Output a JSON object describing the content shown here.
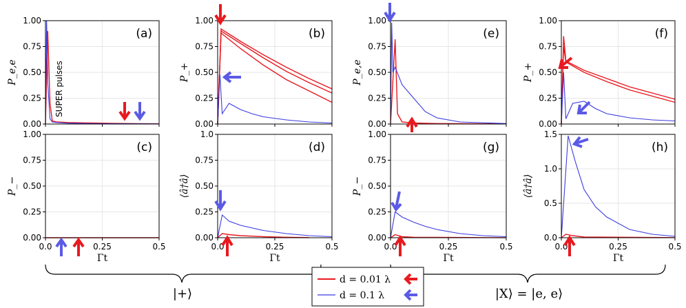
{
  "colors": {
    "red": "#e8191f",
    "blue": "#3a3ae0",
    "arrow_red": "#e8191f",
    "arrow_blue": "#5a5ae6"
  },
  "x_ticks": [
    "0.0",
    "0.25",
    "0.5"
  ],
  "x_label": "Γt",
  "legend": [
    {
      "label": "d = 0.01 λ",
      "color": "#e8191f"
    },
    {
      "label": "d = 0.1 λ",
      "color": "#3a3ae0"
    }
  ],
  "braces": [
    {
      "label": "|+⟩"
    },
    {
      "label": "|X⟩ = |e, e⟩"
    }
  ],
  "annotation": "SUPER pulses",
  "chart_data": [
    {
      "panel": "(a)",
      "type": "line",
      "ylabel": "P_e,e",
      "xlim": [
        0,
        0.5
      ],
      "ylim": [
        0,
        1
      ],
      "yticks": [
        "0.00",
        "0.25",
        "0.50",
        "0.75",
        "1.00"
      ],
      "series": [
        {
          "name": "d = 0.01 λ",
          "x": [
            0,
            0.01,
            0.02,
            0.03,
            0.05,
            0.1,
            0.2,
            0.3,
            0.4,
            0.5
          ],
          "values": [
            0,
            0.9,
            0.2,
            0.03,
            0.02,
            0.015,
            0.01,
            0.006,
            0.004,
            0.002
          ]
        },
        {
          "name": "d = 0.1 λ",
          "x": [
            0,
            0.005,
            0.01,
            0.02,
            0.03,
            0.05,
            0.1,
            0.2,
            0.3,
            0.4,
            0.5
          ],
          "values": [
            0,
            1.0,
            0.4,
            0.05,
            0.02,
            0.015,
            0.008,
            0.005,
            0.003,
            0.002,
            0.001
          ]
        }
      ]
    },
    {
      "panel": "(b)",
      "type": "line",
      "ylabel": "P_+",
      "xlim": [
        0,
        0.5
      ],
      "ylim": [
        0,
        1
      ],
      "yticks": [
        "0.00",
        "0.25",
        "0.50",
        "0.75",
        "1.00"
      ],
      "series": [
        {
          "name": "d = 0.01 λ",
          "x": [
            0,
            0.015,
            0.1,
            0.2,
            0.3,
            0.4,
            0.5
          ],
          "values": [
            0,
            0.92,
            0.8,
            0.67,
            0.55,
            0.44,
            0.34
          ]
        },
        {
          "name": "d = 0.01 λ (2)",
          "x": [
            0,
            0.015,
            0.1,
            0.2,
            0.3,
            0.4,
            0.5
          ],
          "values": [
            0,
            0.9,
            0.78,
            0.64,
            0.51,
            0.4,
            0.3
          ]
        },
        {
          "name": "d = 0.01 λ (3)",
          "x": [
            0,
            0.015,
            0.1,
            0.2,
            0.3,
            0.4,
            0.5
          ],
          "values": [
            0,
            0.88,
            0.73,
            0.57,
            0.43,
            0.32,
            0.21
          ]
        },
        {
          "name": "d = 0.1 λ",
          "x": [
            0,
            0.01,
            0.02,
            0.05,
            0.1,
            0.15,
            0.2,
            0.3,
            0.4,
            0.5
          ],
          "values": [
            0,
            0.48,
            0.1,
            0.2,
            0.14,
            0.1,
            0.07,
            0.04,
            0.02,
            0.01
          ]
        }
      ]
    },
    {
      "panel": "(c)",
      "type": "line",
      "ylabel": "P_−",
      "xlim": [
        0,
        0.5
      ],
      "ylim": [
        0,
        1
      ],
      "yticks": [
        "0.00",
        "0.25",
        "0.50",
        "0.75",
        "1.00"
      ],
      "series": [
        {
          "name": "d = 0.01 λ",
          "x": [
            0,
            0.5
          ],
          "values": [
            0,
            0
          ]
        },
        {
          "name": "d = 0.1 λ",
          "x": [
            0,
            0.5
          ],
          "values": [
            0,
            0
          ]
        }
      ]
    },
    {
      "panel": "(d)",
      "type": "line",
      "ylabel": "⟨â†â⟩",
      "xlim": [
        0,
        0.5
      ],
      "ylim": [
        0,
        1
      ],
      "yticks": [
        "0.00",
        "0.25",
        "0.50",
        "0.75",
        "1.0"
      ],
      "series": [
        {
          "name": "d = 0.01 λ",
          "x": [
            0,
            0.02,
            0.05,
            0.1,
            0.2,
            0.3,
            0.4
          ],
          "values": [
            0,
            0.04,
            0.03,
            0.02,
            0.01,
            0.005,
            0.002
          ]
        },
        {
          "name": "d = 0.1 λ",
          "x": [
            0,
            0.02,
            0.05,
            0.1,
            0.2,
            0.3,
            0.4,
            0.5
          ],
          "values": [
            0,
            0.22,
            0.16,
            0.12,
            0.07,
            0.04,
            0.02,
            0.01
          ]
        }
      ]
    },
    {
      "panel": "(e)",
      "type": "line",
      "ylabel": "P_e,e",
      "xlim": [
        0,
        0.5
      ],
      "ylim": [
        0,
        1
      ],
      "yticks": [
        "0.00",
        "0.25",
        "0.50",
        "0.75",
        "1.00"
      ],
      "series": [
        {
          "name": "d = 0.01 λ",
          "x": [
            0,
            0.02,
            0.03,
            0.05,
            0.1,
            0.2,
            0.5
          ],
          "values": [
            0,
            0.82,
            0.1,
            0.02,
            0.01,
            0.005,
            0.001
          ]
        },
        {
          "name": "d = 0.1 λ",
          "x": [
            0,
            0.005,
            0.01,
            0.02,
            0.05,
            0.1,
            0.15,
            0.2,
            0.3,
            0.5
          ],
          "values": [
            0,
            0.98,
            0.5,
            0.55,
            0.38,
            0.25,
            0.12,
            0.06,
            0.02,
            0.005
          ]
        }
      ]
    },
    {
      "panel": "(f)",
      "type": "line",
      "ylabel": "P_+",
      "xlim": [
        0,
        0.5
      ],
      "ylim": [
        0,
        1
      ],
      "yticks": [
        "0.00",
        "0.25",
        "0.50",
        "0.75",
        "1.00"
      ],
      "series": [
        {
          "name": "d = 0.01 λ",
          "x": [
            0,
            0.01,
            0.02,
            0.1,
            0.2,
            0.3,
            0.4,
            0.5
          ],
          "values": [
            0,
            0.85,
            0.61,
            0.52,
            0.44,
            0.36,
            0.3,
            0.24
          ]
        },
        {
          "name": "d = 0.01 λ (2)",
          "x": [
            0,
            0.01,
            0.02,
            0.1,
            0.2,
            0.3,
            0.4,
            0.5
          ],
          "values": [
            0,
            0.75,
            0.6,
            0.5,
            0.41,
            0.33,
            0.27,
            0.21
          ]
        },
        {
          "name": "d = 0.1 λ",
          "x": [
            0,
            0.01,
            0.02,
            0.05,
            0.1,
            0.15,
            0.2,
            0.3,
            0.4,
            0.5
          ],
          "values": [
            0,
            0.5,
            0.05,
            0.2,
            0.22,
            0.15,
            0.1,
            0.06,
            0.04,
            0.03
          ]
        }
      ]
    },
    {
      "panel": "(g)",
      "type": "line",
      "ylabel": "P_−",
      "xlim": [
        0,
        0.5
      ],
      "ylim": [
        0,
        1
      ],
      "yticks": [
        "0.00",
        "0.25",
        "0.50",
        "0.75",
        "1.00"
      ],
      "series": [
        {
          "name": "d = 0.01 λ",
          "x": [
            0,
            0.02,
            0.05,
            0.1,
            0.5
          ],
          "values": [
            0,
            0.03,
            0.01,
            0.005,
            0.001
          ]
        },
        {
          "name": "d = 0.1 λ",
          "x": [
            0,
            0.02,
            0.05,
            0.1,
            0.15,
            0.2,
            0.3,
            0.4,
            0.5
          ],
          "values": [
            0,
            0.25,
            0.2,
            0.15,
            0.11,
            0.08,
            0.04,
            0.02,
            0.01
          ]
        }
      ]
    },
    {
      "panel": "(h)",
      "type": "line",
      "ylabel": "⟨â†â⟩",
      "xlim": [
        0,
        0.5
      ],
      "ylim": [
        0,
        1.5
      ],
      "yticks": [
        "0.0",
        "0.5",
        "1.0",
        "1.5"
      ],
      "series": [
        {
          "name": "d = 0.01 λ",
          "x": [
            0,
            0.02,
            0.05,
            0.1,
            0.5
          ],
          "values": [
            0,
            0.05,
            0.03,
            0.01,
            0.002
          ]
        },
        {
          "name": "d = 0.1 λ",
          "x": [
            0,
            0.03,
            0.06,
            0.1,
            0.15,
            0.2,
            0.3,
            0.4,
            0.5
          ],
          "values": [
            0,
            1.48,
            1.12,
            0.7,
            0.45,
            0.3,
            0.12,
            0.05,
            0.02
          ]
        }
      ]
    }
  ]
}
